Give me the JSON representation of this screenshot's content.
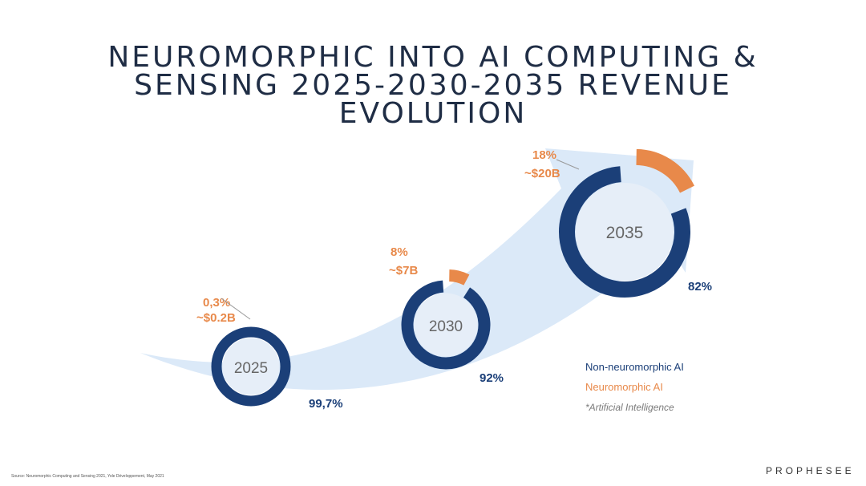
{
  "title_lines": [
    "NEUROMORPHIC INTO AI COMPUTING &",
    "SENSING 2025-2030-2035 REVENUE",
    "EVOLUTION"
  ],
  "chart_data": {
    "type": "pie",
    "title": "NEUROMORPHIC INTO AI COMPUTING & SENSING 2025-2030-2035 REVENUE EVOLUTION",
    "legend": [
      "Non-neuromorphic AI",
      "Neuromorphic AI"
    ],
    "legend_note": "*Artificial Intelligence",
    "colors": {
      "non_neuromorphic": "#1b3f78",
      "neuromorphic": "#e8894a",
      "arrow": "#dbe9f8"
    },
    "donuts": [
      {
        "year": "2025",
        "neuromorphic_pct": 0.3,
        "non_neuromorphic_pct": 99.7,
        "neuromorphic_label": "0,3%",
        "revenue_label": "~$0.2B",
        "non_neuromorphic_label": "99,7%"
      },
      {
        "year": "2030",
        "neuromorphic_pct": 8,
        "non_neuromorphic_pct": 92,
        "neuromorphic_label": "8%",
        "revenue_label": "~$7B",
        "non_neuromorphic_label": "92%"
      },
      {
        "year": "2035",
        "neuromorphic_pct": 18,
        "non_neuromorphic_pct": 82,
        "neuromorphic_label": "18%",
        "revenue_label": "~$20B",
        "non_neuromorphic_label": "82%"
      }
    ]
  },
  "source": "Source: Neuromorphic Computing and Sensing 2021, Yole Développement, May 2021",
  "brand": "PROPHESEE"
}
